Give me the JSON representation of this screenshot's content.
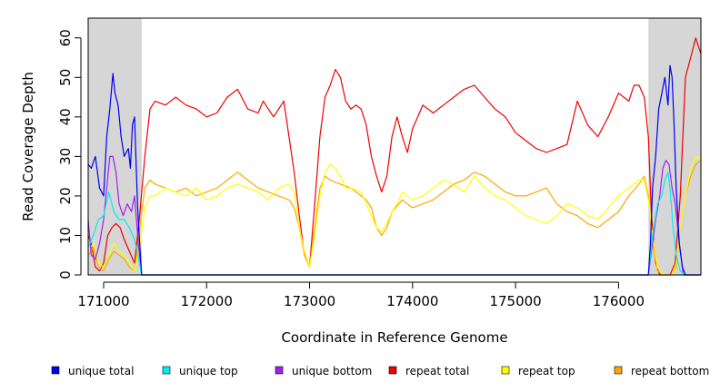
{
  "chart_data": {
    "type": "line",
    "title": "",
    "xlabel": "Coordinate in Reference Genome",
    "ylabel": "Read Coverage Depth",
    "xlim": [
      170850,
      176800
    ],
    "ylim": [
      0,
      65
    ],
    "xticks": [
      171000,
      172000,
      173000,
      174000,
      175000,
      176000
    ],
    "yticks": [
      0,
      10,
      20,
      30,
      40,
      50,
      60
    ],
    "grid": false,
    "legend_position": "bottom",
    "shaded_regions": [
      [
        170850,
        171370
      ],
      [
        176290,
        176800
      ]
    ],
    "shade_color": "#d6d6d6",
    "series": [
      {
        "name": "unique total",
        "color": "#0000ee",
        "x": [
          170850,
          170880,
          170920,
          170960,
          171000,
          171030,
          171060,
          171090,
          171110,
          171140,
          171170,
          171200,
          171240,
          171260,
          171280,
          171300,
          171330,
          171350,
          171370,
          176290,
          176310,
          176330,
          176360,
          176390,
          176420,
          176450,
          176480,
          176500,
          176520,
          176540,
          176560,
          176590,
          176620,
          176650,
          176700,
          176800
        ],
        "y": [
          28,
          27,
          30,
          22,
          20,
          35,
          42,
          51,
          46,
          43,
          35,
          30,
          32,
          27,
          38,
          40,
          17,
          8,
          0,
          0,
          8,
          22,
          30,
          42,
          46,
          50,
          43,
          53,
          50,
          38,
          22,
          8,
          2,
          0,
          0,
          0
        ]
      },
      {
        "name": "unique top",
        "color": "#00eeee",
        "x": [
          170850,
          170900,
          170950,
          171000,
          171050,
          171100,
          171150,
          171200,
          171250,
          171300,
          171340,
          171370,
          176290,
          176330,
          176380,
          176420,
          176450,
          176480,
          176500,
          176530,
          176560,
          176600,
          176650,
          176800
        ],
        "y": [
          7,
          10,
          14,
          15,
          21,
          16,
          14,
          14,
          12,
          9,
          4,
          0,
          0,
          10,
          18,
          20,
          24,
          26,
          22,
          12,
          5,
          1,
          0,
          0
        ]
      },
      {
        "name": "unique bottom",
        "color": "#a020f0",
        "x": [
          170850,
          170880,
          170920,
          170960,
          171000,
          171030,
          171060,
          171090,
          171120,
          171150,
          171190,
          171230,
          171270,
          171300,
          171340,
          171370,
          176290,
          176320,
          176360,
          176400,
          176430,
          176460,
          176490,
          176520,
          176550,
          176590,
          176630,
          176800
        ],
        "y": [
          14,
          5,
          4,
          8,
          14,
          22,
          30,
          30,
          26,
          18,
          15,
          18,
          16,
          20,
          7,
          0,
          0,
          6,
          14,
          20,
          27,
          29,
          28,
          22,
          18,
          8,
          0,
          0
        ]
      },
      {
        "name": "repeat total",
        "color": "#ee0000",
        "x": [
          170850,
          170880,
          170920,
          170960,
          171000,
          171040,
          171080,
          171120,
          171160,
          171200,
          171250,
          171300,
          171350,
          171400,
          171450,
          171500,
          171600,
          171700,
          171800,
          171900,
          172000,
          172100,
          172200,
          172300,
          172400,
          172500,
          172550,
          172650,
          172750,
          172850,
          172900,
          172950,
          173000,
          173050,
          173100,
          173150,
          173200,
          173250,
          173300,
          173350,
          173400,
          173450,
          173500,
          173550,
          173600,
          173650,
          173700,
          173750,
          173800,
          173850,
          173900,
          173950,
          174000,
          174050,
          174100,
          174150,
          174200,
          174300,
          174400,
          174500,
          174600,
          174700,
          174800,
          174900,
          175000,
          175100,
          175200,
          175300,
          175400,
          175500,
          175600,
          175700,
          175800,
          175900,
          176000,
          176100,
          176150,
          176200,
          176250,
          176290,
          176320,
          176360,
          176400,
          176450,
          176500,
          176550,
          176600,
          176650,
          176700,
          176750,
          176800
        ],
        "y": [
          10,
          8,
          2,
          1,
          3,
          10,
          12,
          13,
          12,
          9,
          6,
          3,
          15,
          30,
          42,
          44,
          43,
          45,
          43,
          42,
          40,
          41,
          45,
          47,
          42,
          41,
          44,
          40,
          44,
          26,
          15,
          5,
          2,
          18,
          35,
          45,
          48,
          52,
          50,
          44,
          42,
          43,
          42,
          38,
          30,
          25,
          21,
          25,
          35,
          40,
          35,
          31,
          37,
          40,
          43,
          42,
          41,
          43,
          45,
          47,
          48,
          45,
          42,
          40,
          36,
          34,
          32,
          31,
          32,
          33,
          44,
          38,
          35,
          40,
          46,
          44,
          48,
          48,
          45,
          35,
          15,
          3,
          0,
          0,
          0,
          3,
          20,
          50,
          55,
          60,
          56
        ]
      },
      {
        "name": "repeat top",
        "color": "#ffff00",
        "x": [
          170850,
          170900,
          170950,
          171000,
          171050,
          171100,
          171150,
          171200,
          171250,
          171300,
          171350,
          171400,
          171450,
          171500,
          171600,
          171700,
          171800,
          171900,
          172000,
          172100,
          172200,
          172300,
          172400,
          172500,
          172600,
          172700,
          172800,
          172850,
          172900,
          172950,
          173000,
          173050,
          173100,
          173150,
          173200,
          173250,
          173300,
          173350,
          173400,
          173500,
          173550,
          173600,
          173650,
          173700,
          173750,
          173800,
          173850,
          173900,
          174000,
          174100,
          174200,
          174300,
          174400,
          174500,
          174600,
          174700,
          174800,
          174900,
          175000,
          175100,
          175200,
          175300,
          175400,
          175500,
          175600,
          175700,
          175800,
          175900,
          176000,
          176100,
          176200,
          176250,
          176290,
          176330,
          176380,
          176430,
          176480,
          176520,
          176560,
          176600,
          176650,
          176700,
          176750,
          176800
        ],
        "y": [
          6,
          8,
          3,
          2,
          5,
          8,
          6,
          5,
          3,
          1,
          7,
          17,
          20,
          20,
          22,
          21,
          20,
          22,
          19,
          20,
          22,
          23,
          22,
          21,
          19,
          22,
          23,
          21,
          12,
          6,
          2,
          10,
          20,
          26,
          28,
          27,
          25,
          22,
          22,
          21,
          18,
          15,
          12,
          11,
          13,
          16,
          18,
          21,
          19,
          20,
          22,
          24,
          23,
          21,
          25,
          22,
          20,
          19,
          17,
          15,
          14,
          13,
          15,
          18,
          17,
          15,
          14,
          17,
          20,
          22,
          24,
          24,
          19,
          10,
          2,
          0,
          0,
          0,
          3,
          12,
          20,
          27,
          30,
          29
        ]
      },
      {
        "name": "repeat bottom",
        "color": "#ffa500",
        "x": [
          170850,
          170900,
          170950,
          171000,
          171050,
          171100,
          171150,
          171200,
          171250,
          171300,
          171350,
          171400,
          171450,
          171500,
          171600,
          171700,
          171800,
          171900,
          172000,
          172100,
          172200,
          172300,
          172400,
          172500,
          172600,
          172700,
          172800,
          172850,
          172900,
          172950,
          173000,
          173050,
          173100,
          173150,
          173200,
          173300,
          173400,
          173500,
          173550,
          173600,
          173650,
          173700,
          173750,
          173800,
          173900,
          174000,
          174100,
          174200,
          174300,
          174400,
          174500,
          174600,
          174700,
          174800,
          174900,
          175000,
          175100,
          175200,
          175300,
          175400,
          175500,
          175600,
          175700,
          175800,
          175900,
          176000,
          176100,
          176200,
          176250,
          176290,
          176330,
          176380,
          176430,
          176480,
          176520,
          176560,
          176600,
          176650,
          176700,
          176750,
          176800
        ],
        "y": [
          5,
          7,
          2,
          1,
          4,
          6,
          5,
          4,
          2,
          1,
          12,
          22,
          24,
          23,
          22,
          21,
          22,
          20,
          21,
          22,
          24,
          26,
          24,
          22,
          21,
          20,
          19,
          17,
          12,
          5,
          2,
          12,
          22,
          25,
          24,
          23,
          22,
          20,
          19,
          17,
          12,
          10,
          12,
          16,
          19,
          17,
          18,
          19,
          21,
          23,
          24,
          26,
          25,
          23,
          21,
          20,
          20,
          21,
          22,
          18,
          16,
          15,
          13,
          12,
          14,
          16,
          20,
          23,
          25,
          20,
          8,
          1,
          0,
          0,
          0,
          2,
          12,
          20,
          25,
          28,
          29
        ]
      }
    ]
  }
}
